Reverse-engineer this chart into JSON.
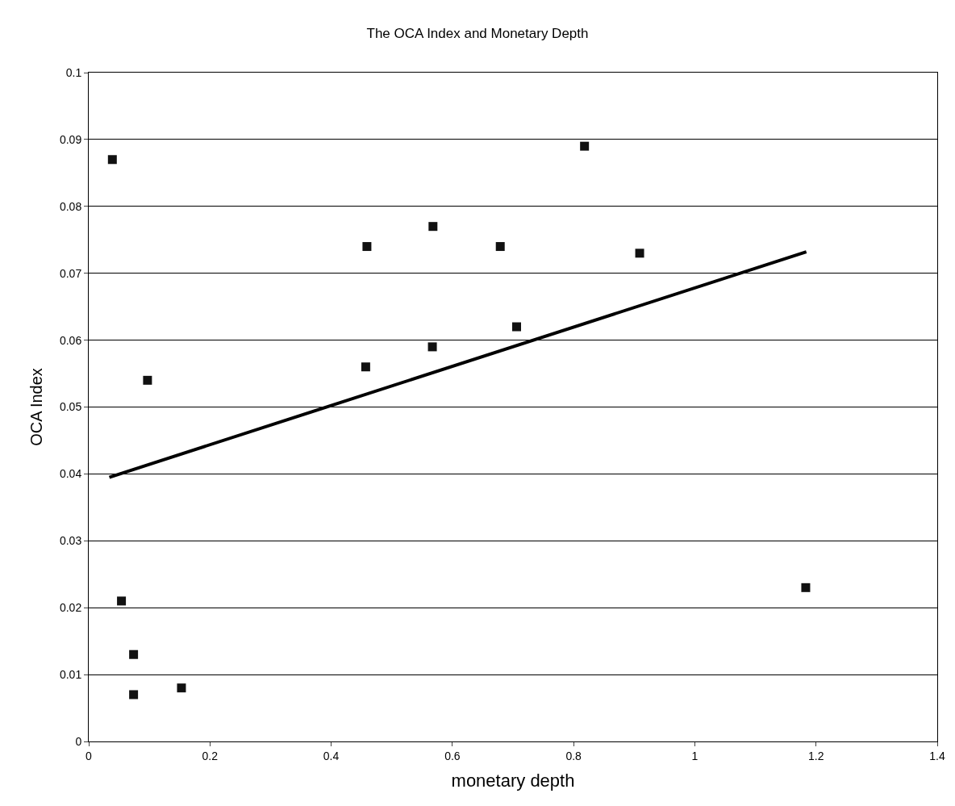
{
  "chart_data": {
    "type": "scatter",
    "title": "The OCA Index and Monetary Depth",
    "xlabel": "monetary depth",
    "ylabel": "OCA Index",
    "series": [
      {
        "color": "#111111",
        "marker": "square",
        "x": [
          0.039,
          0.054,
          0.074,
          0.074,
          0.097,
          0.153,
          0.459,
          0.457,
          0.568,
          0.567,
          0.679,
          0.706,
          0.818,
          0.909,
          1.183
        ],
        "values": [
          0.087,
          0.021,
          0.013,
          0.007,
          0.054,
          0.008,
          0.074,
          0.056,
          0.077,
          0.059,
          0.074,
          0.062,
          0.089,
          0.073,
          0.023
        ]
      },
      {
        "type": "line",
        "color": "#000000",
        "line_style": "solid",
        "marker": "none",
        "x": [
          0.034,
          1.184
        ],
        "values": [
          0.0395,
          0.0732
        ]
      }
    ],
    "xlim": [
      0,
      1.4
    ],
    "xticks": [
      0,
      0.2,
      0.4,
      0.6,
      0.8,
      1,
      1.2,
      1.4
    ],
    "ylim": [
      0,
      0.1
    ],
    "yticks": [
      0,
      0.01,
      0.02,
      0.03,
      0.04,
      0.05,
      0.06,
      0.07,
      0.08,
      0.09,
      0.1
    ],
    "grid": "y"
  }
}
